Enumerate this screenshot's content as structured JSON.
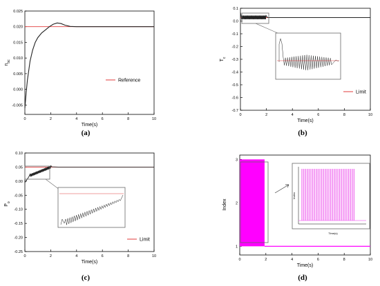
{
  "chart_data": [
    {
      "id": "a",
      "type": "line",
      "caption": "(a)",
      "xlabel": "Time(s)",
      "ylabel": "n",
      "ylabel_sub": "bc",
      "xlim": [
        0,
        10
      ],
      "ylim": [
        -0.008,
        0.025
      ],
      "xticks": [
        "0",
        "2",
        "4",
        "6",
        "8",
        "10"
      ],
      "yticks": [
        "-0.005",
        "0.000",
        "0.005",
        "0.010",
        "0.015",
        "0.020",
        "0.025"
      ],
      "legend": "Reference",
      "legend_position": "right",
      "reference_value": 0.02,
      "series": [
        {
          "x": [
            0,
            0.1,
            0.2,
            0.4,
            0.6,
            0.8,
            1.0,
            1.3,
            1.6,
            1.9,
            2.2,
            2.5,
            2.8,
            3.1,
            3.5,
            4.0,
            5.0,
            6.0,
            7.0,
            8.0,
            9.0,
            10.0
          ],
          "y": [
            -0.006,
            -0.001,
            0.003,
            0.009,
            0.0125,
            0.015,
            0.0165,
            0.018,
            0.019,
            0.02,
            0.0208,
            0.0212,
            0.021,
            0.0205,
            0.0201,
            0.02,
            0.02,
            0.02,
            0.02,
            0.02,
            0.02,
            0.02
          ]
        }
      ]
    },
    {
      "id": "b",
      "type": "line",
      "caption": "(b)",
      "xlabel": "Time(s)",
      "ylabel": "T",
      "ylabel_sub": "c",
      "xlim": [
        0,
        10
      ],
      "ylim": [
        -0.7,
        0.1
      ],
      "xticks": [
        "0",
        "2",
        "4",
        "6",
        "8",
        "10"
      ],
      "yticks": [
        "-0.7",
        "-0.6",
        "-0.5",
        "-0.4",
        "-0.3",
        "-0.2",
        "-0.1",
        "0.0",
        "0.1"
      ],
      "legend": "Limit",
      "legend_position": "bottom-right",
      "limit_value": 0.027,
      "zoom_inset": true
    },
    {
      "id": "c",
      "type": "line",
      "caption": "(c)",
      "xlabel": "Time(s)",
      "ylabel": "P",
      "ylabel_sub": "o",
      "xlim": [
        0,
        10
      ],
      "ylim": [
        -0.25,
        0.1
      ],
      "xticks": [
        "0",
        "2",
        "4",
        "6",
        "8",
        "10"
      ],
      "yticks": [
        "-0.25",
        "-0.20",
        "-0.15",
        "-0.10",
        "-0.05",
        "0.00",
        "0.05",
        "0.10"
      ],
      "legend": "Limit",
      "legend_position": "bottom-right",
      "limit_value": 0.05,
      "zoom_inset": true
    },
    {
      "id": "d",
      "type": "line",
      "caption": "(d)",
      "xlabel": "Time(s)",
      "ylabel": "Index",
      "xlim": [
        0,
        10
      ],
      "ylim": [
        0.8,
        3.1
      ],
      "xticks": [
        "0",
        "2",
        "4",
        "6",
        "8",
        "10"
      ],
      "yticks": [
        "1",
        "2",
        "3"
      ],
      "switch_interval_s": [
        0,
        1.9
      ],
      "steady_value": 1,
      "inset_xlabel": "Time(s)",
      "inset_ylabel": "Index",
      "zoom_inset": true
    }
  ],
  "colors": {
    "signal": "#222222",
    "reference": "#e03a3a",
    "index": "#ff00ff",
    "inset_index": "#f070f0"
  }
}
